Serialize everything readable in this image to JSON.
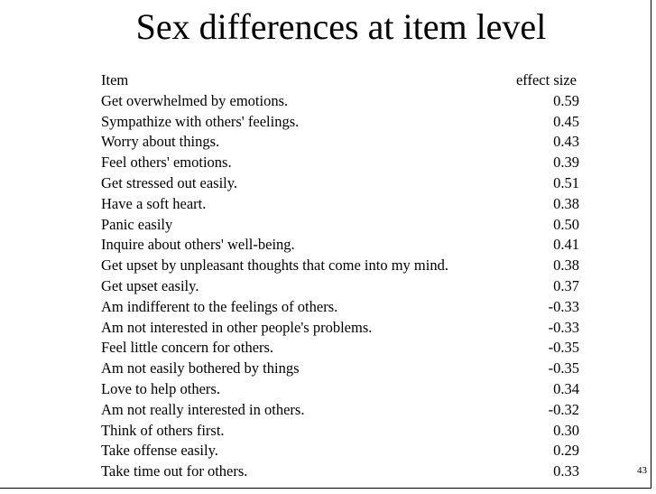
{
  "title": "Sex differences at item level",
  "table": {
    "header": {
      "item": "Item",
      "value": "effect size"
    },
    "rows": [
      {
        "item": "Get overwhelmed by emotions.",
        "value": "0.59"
      },
      {
        "item": "Sympathize with others' feelings.",
        "value": "0.45"
      },
      {
        "item": "Worry about things.",
        "value": "0.43"
      },
      {
        "item": "Feel others' emotions.",
        "value": "0.39"
      },
      {
        "item": "Get stressed out easily.",
        "value": "0.51"
      },
      {
        "item": "Have a soft heart.",
        "value": "0.38"
      },
      {
        "item": "Panic easily",
        "value": "0.50"
      },
      {
        "item": "Inquire about others' well-being.",
        "value": "0.41"
      },
      {
        "item": "Get upset by unpleasant thoughts that come into my mind.",
        "value": "0.38"
      },
      {
        "item": "Get upset easily.",
        "value": "0.37"
      },
      {
        "item": "Am indifferent to the feelings of others.",
        "value": "-0.33"
      },
      {
        "item": "Am not interested in other people's problems.",
        "value": "-0.33"
      },
      {
        "item": "Feel little concern for others.",
        "value": "-0.35"
      },
      {
        "item": "Am not easily bothered by things",
        "value": "-0.35"
      },
      {
        "item": "Love to help others.",
        "value": "0.34"
      },
      {
        "item": "Am not really interested in others.",
        "value": "-0.32"
      },
      {
        "item": "Think of others first.",
        "value": "0.30"
      },
      {
        "item": "Take offense easily.",
        "value": "0.29"
      },
      {
        "item": "Take time out for others.",
        "value": "0.33"
      }
    ]
  },
  "page_number": "43"
}
